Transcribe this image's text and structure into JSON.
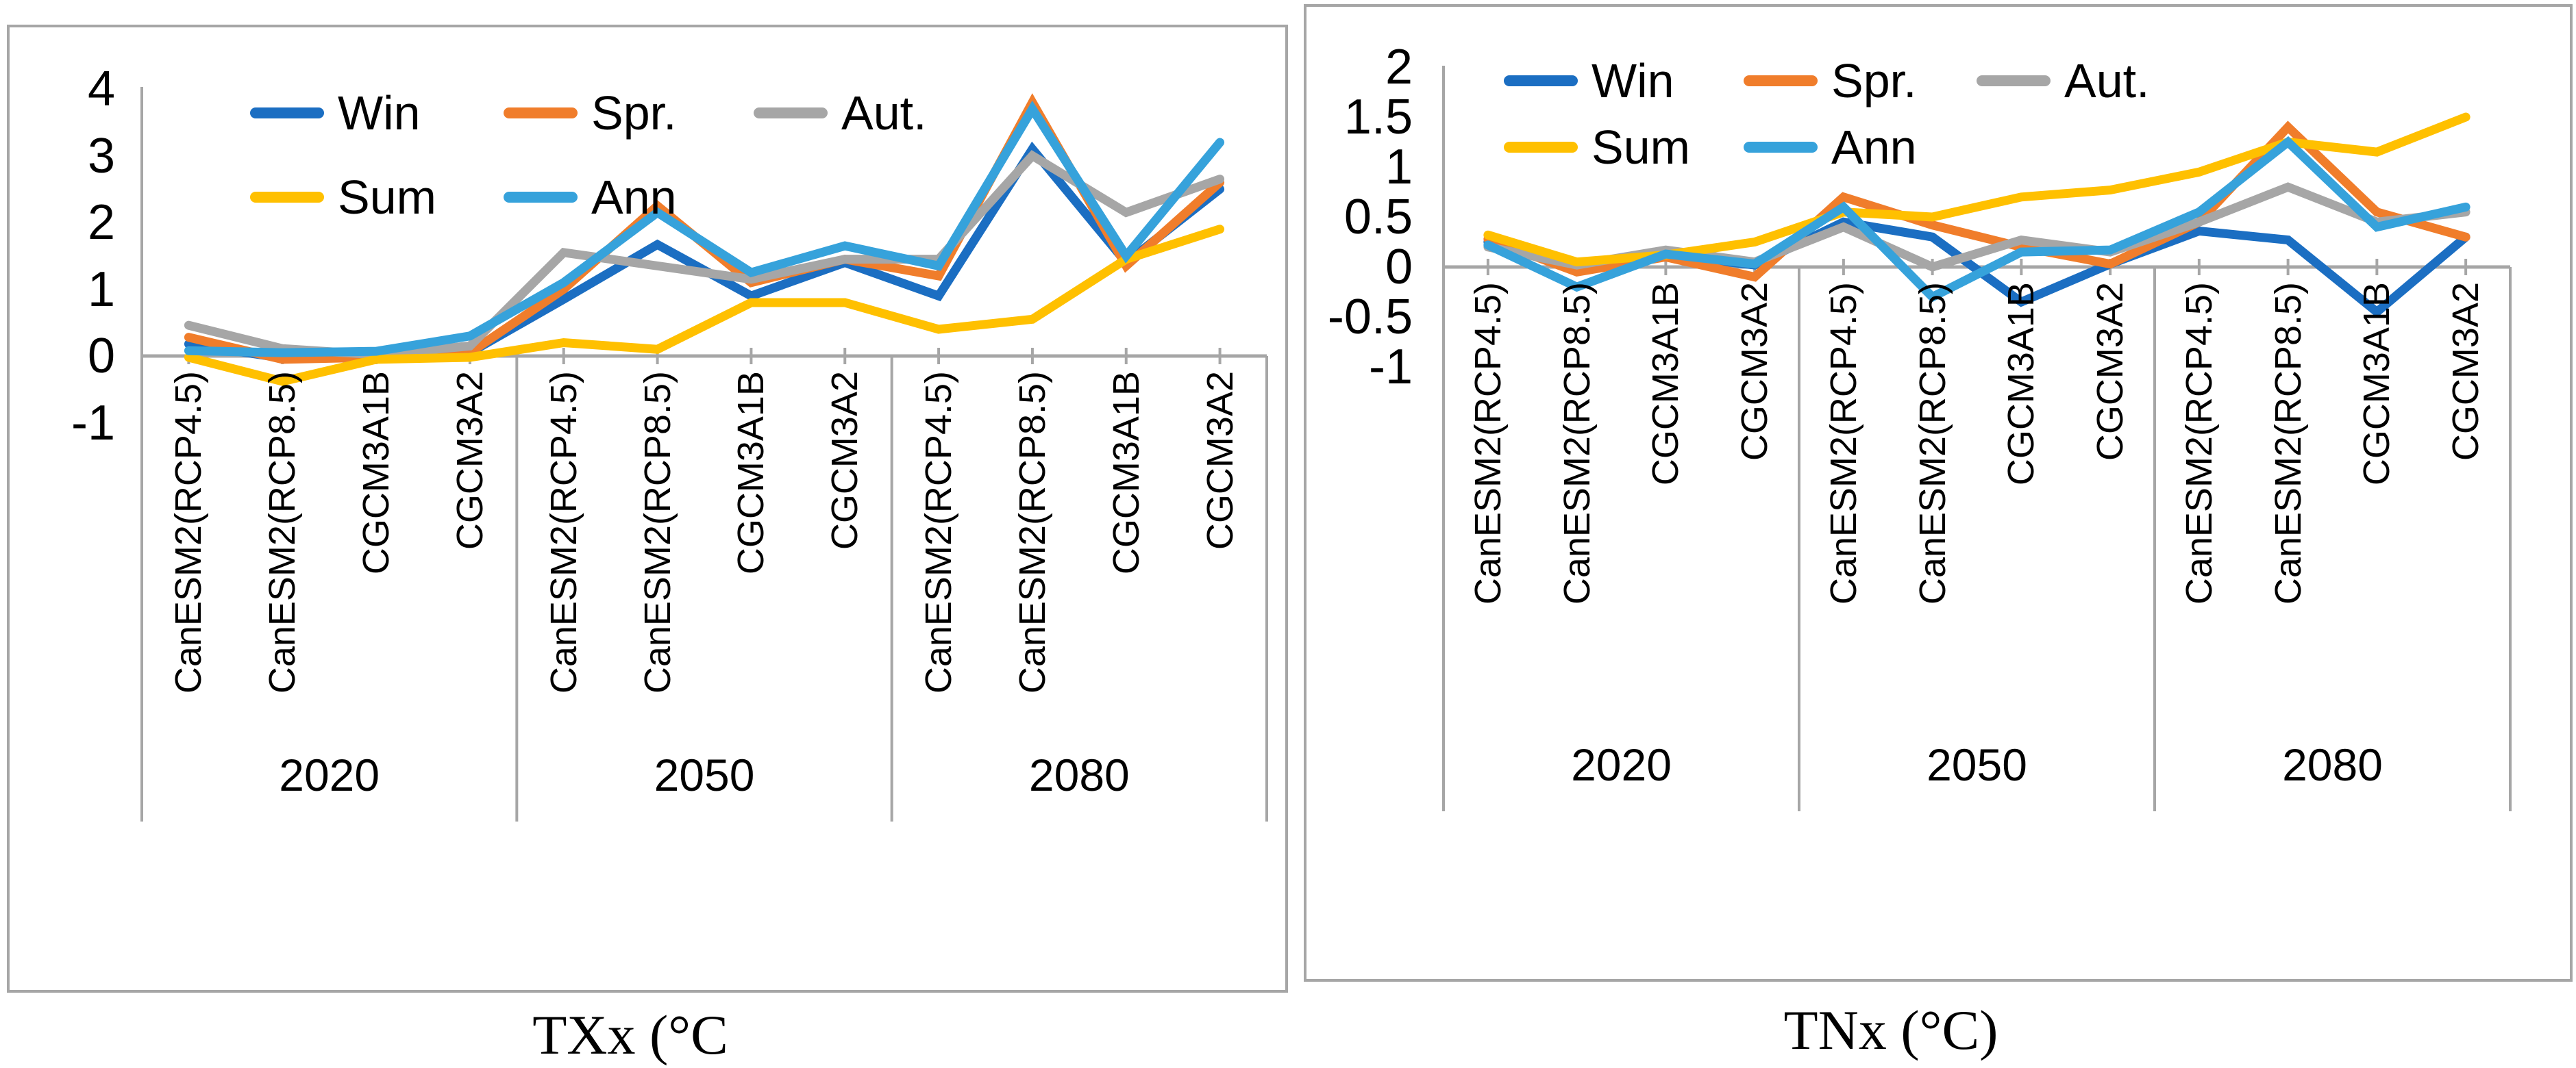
{
  "figure": {
    "background": "#ffffff",
    "border_color": "#a6a6a6"
  },
  "captions": {
    "left": "TXx (°C",
    "right": "TNx (°C)"
  },
  "chart_data": [
    {
      "type": "line",
      "title": "TXx (°C",
      "legend_position": "top-left-two-rows",
      "grid": false,
      "ylim": [
        -1,
        4
      ],
      "yticks": [
        "4",
        "3",
        "2",
        "1",
        "0",
        "-1"
      ],
      "ytick_values": [
        4,
        3,
        2,
        1,
        0,
        -1
      ],
      "categories": [
        "CanESM2(RCP4.5)",
        "CanESM2(RCP8.5)",
        "CGCM3A1B",
        "CGCM3A2",
        "CanESM2(RCP4.5)",
        "CanESM2(RCP8.5)",
        "CGCM3A1B",
        "CGCM3A2",
        "CanESM2(RCP4.5)",
        "CanESM2(RCP8.5)",
        "CGCM3A1B",
        "CGCM3A2"
      ],
      "groups": [
        "2020",
        "2050",
        "2080"
      ],
      "series": [
        {
          "name": "Win",
          "color": "#1b6ec2",
          "values": [
            0.18,
            -0.03,
            -0.02,
            0.05,
            0.85,
            1.67,
            0.9,
            1.4,
            0.9,
            3.1,
            1.4,
            2.5
          ]
        },
        {
          "name": "Spr.",
          "color": "#f07d2b",
          "values": [
            0.28,
            -0.05,
            -0.02,
            0.05,
            1.0,
            2.25,
            1.1,
            1.45,
            1.2,
            3.8,
            1.35,
            2.6
          ]
        },
        {
          "name": "Aut.",
          "color": "#a6a6a6",
          "values": [
            0.46,
            0.11,
            0.02,
            0.15,
            1.55,
            1.35,
            1.15,
            1.45,
            1.45,
            3.0,
            2.15,
            2.65
          ]
        },
        {
          "name": "Sum",
          "color": "#ffc000",
          "values": [
            -0.02,
            -0.38,
            -0.05,
            -0.02,
            0.2,
            0.1,
            0.8,
            0.8,
            0.4,
            0.55,
            1.45,
            1.9
          ]
        },
        {
          "name": "Ann",
          "color": "#36a2db",
          "values": [
            0.08,
            0.05,
            0.07,
            0.3,
            1.1,
            2.15,
            1.25,
            1.65,
            1.35,
            3.7,
            1.5,
            3.2
          ]
        }
      ],
      "legend": [
        "Win",
        "Spr.",
        "Aut.",
        "Sum",
        "Ann"
      ]
    },
    {
      "type": "line",
      "title": "TNx (°C)",
      "legend_position": "top-left-two-rows",
      "grid": false,
      "ylim": [
        -1,
        2
      ],
      "yticks": [
        "2",
        "1.5",
        "1",
        "0.5",
        "0",
        "-0.5",
        "-1"
      ],
      "ytick_values": [
        2,
        1.5,
        1,
        0.5,
        0,
        -0.5,
        -1
      ],
      "categories": [
        "CanESM2(RCP4.5)",
        "CanESM2(RCP8.5)",
        "CGCM3A1B",
        "CGCM3A2",
        "CanESM2(RCP4.5)",
        "CanESM2(RCP8.5)",
        "CGCM3A1B",
        "CGCM3A2",
        "CanESM2(RCP4.5)",
        "CanESM2(RCP8.5)",
        "CGCM3A1B",
        "CGCM3A2"
      ],
      "groups": [
        "2020",
        "2050",
        "2080"
      ],
      "series": [
        {
          "name": "Win",
          "color": "#1b6ec2",
          "values": [
            0.25,
            0.0,
            0.12,
            0.02,
            0.45,
            0.3,
            -0.35,
            0.03,
            0.36,
            0.27,
            -0.45,
            0.3
          ]
        },
        {
          "name": "Spr.",
          "color": "#f07d2b",
          "values": [
            0.28,
            -0.05,
            0.1,
            -0.1,
            0.7,
            0.42,
            0.2,
            0.03,
            0.45,
            1.4,
            0.55,
            0.3
          ]
        },
        {
          "name": "Aut.",
          "color": "#a6a6a6",
          "values": [
            0.2,
            0.02,
            0.17,
            0.05,
            0.4,
            0.0,
            0.27,
            0.15,
            0.45,
            0.8,
            0.45,
            0.55
          ]
        },
        {
          "name": "Sum",
          "color": "#ffc000",
          "values": [
            0.32,
            0.05,
            0.12,
            0.25,
            0.55,
            0.5,
            0.7,
            0.77,
            0.95,
            1.25,
            1.15,
            1.5
          ]
        },
        {
          "name": "Ann",
          "color": "#36a2db",
          "values": [
            0.22,
            -0.2,
            0.13,
            0.03,
            0.6,
            -0.3,
            0.15,
            0.17,
            0.55,
            1.25,
            0.4,
            0.6
          ]
        }
      ],
      "legend": [
        "Win",
        "Spr.",
        "Aut.",
        "Sum",
        "Ann"
      ]
    }
  ]
}
